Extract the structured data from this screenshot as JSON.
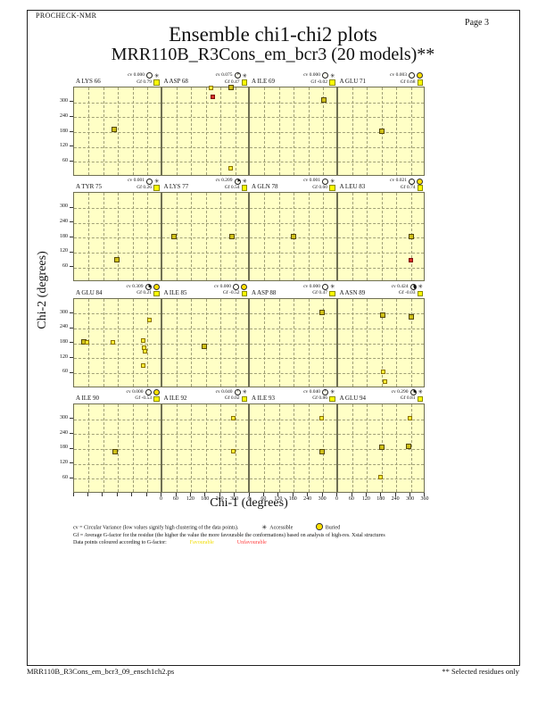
{
  "page": {
    "app": "PROCHECK-NMR",
    "page_label": "Page  3",
    "title": "Ensemble chi1-chi2 plots",
    "subtitle": "MRR110B_R3Cons_em_bcr3 (20 models)**",
    "footer_left": "MRR110B_R3Cons_em_bcr3_09_ensch1ch2.ps",
    "footer_right": "** Selected residues only"
  },
  "axes": {
    "xlabel": "Chi-1 (degrees)",
    "ylabel": "Chi-2 (degrees)",
    "x_tick_labels": [
      "0",
      "60",
      "120",
      "180",
      "240",
      "300"
    ],
    "x_final_label": "360",
    "y_tick_labels": [
      "300",
      "240",
      "180",
      "120",
      "60"
    ]
  },
  "legend": {
    "cv_line": "cv = Circular Variance (low values signify high clustering of the data points).",
    "accessible_label": "Accessible",
    "buried_label": "Buried",
    "gf_line": "Gf = Average G-factor for the residue (the higher the value the more favourable the conformations) based on analysis of high-res. Xstal structures",
    "colour_line": "Data points coloured according to G-factor:",
    "favourable_label": "Favourable",
    "unfavourable_label": "Unfavourable"
  },
  "colors": {
    "plot_bg": "#ffffc6",
    "plot_border": "#6f6f52",
    "gridline": "#a0a075",
    "favourable_point": "#ffee33",
    "overlap_point": "#cfc018",
    "unfavourable_point": "#d83028",
    "gf_swatch": "#ffff00",
    "buried_icon": "#ffe000",
    "favourable_text": "#f0dc00",
    "unfavourable_text": "#ff4040"
  },
  "chart_data": {
    "type": "scatter",
    "title": "Ensemble chi1-chi2 plots",
    "xlabel": "Chi-1 (degrees)",
    "ylabel": "Chi-2 (degrees)",
    "xlim": [
      0,
      360
    ],
    "ylim": [
      0,
      360
    ],
    "grid_step": 60,
    "stat_prefix_cv": "cv",
    "stat_prefix_gf": "Gf",
    "point_color_codes": {
      "f": "favourable",
      "o": "favourable-overlap",
      "u": "unfavourable"
    },
    "plots": [
      {
        "residue": "A LYS 66",
        "cv": "0.000",
        "gf": "0.79",
        "state": "accessible",
        "points": [
          [
            170,
            185,
            "o"
          ]
        ]
      },
      {
        "residue": "A ASP 68",
        "cv": "0.075",
        "gf": "0.47",
        "state": "accessible",
        "points": [
          [
            205,
            353,
            "f"
          ],
          [
            288,
            356,
            "o"
          ],
          [
            215,
            318,
            "u"
          ],
          [
            288,
            28,
            "f"
          ]
        ]
      },
      {
        "residue": "A ILE 69",
        "cv": "0.000",
        "gf": "-0.02",
        "state": "accessible",
        "points": [
          [
            307,
            305,
            "o"
          ]
        ]
      },
      {
        "residue": "A GLU 71",
        "cv": "0.003",
        "gf": "0.68",
        "state": "buried",
        "points": [
          [
            185,
            180,
            "o"
          ]
        ]
      },
      {
        "residue": "A TYR 75",
        "cv": "0.001",
        "gf": "0.26",
        "state": "accessible",
        "points": [
          [
            180,
            85,
            "o"
          ]
        ]
      },
      {
        "residue": "A LYS 77",
        "cv": "0.209",
        "gf": "0.54",
        "state": "accessible",
        "points": [
          [
            55,
            180,
            "o"
          ],
          [
            293,
            180,
            "o"
          ]
        ]
      },
      {
        "residue": "A GLN 78",
        "cv": "0.001",
        "gf": "0.60",
        "state": "accessible",
        "points": [
          [
            185,
            180,
            "o"
          ]
        ]
      },
      {
        "residue": "A LEU 83",
        "cv": "0.021",
        "gf": "0.74",
        "state": "buried",
        "points": [
          [
            305,
            178,
            "o"
          ],
          [
            305,
            85,
            "u"
          ]
        ]
      },
      {
        "residue": "A GLU 84",
        "cv": "0.309",
        "gf": "0.21",
        "state": "buried",
        "points": [
          [
            45,
            180,
            "o"
          ],
          [
            57,
            180,
            "f"
          ],
          [
            165,
            180,
            "f"
          ],
          [
            290,
            185,
            "f"
          ],
          [
            292,
            158,
            "f"
          ],
          [
            296,
            142,
            "f"
          ],
          [
            313,
            270,
            "f"
          ],
          [
            287,
            85,
            "f"
          ]
        ]
      },
      {
        "residue": "A ILE 85",
        "cv": "0.000",
        "gf": "-0.52",
        "state": "buried",
        "points": [
          [
            180,
            163,
            "o"
          ]
        ]
      },
      {
        "residue": "A ASP 88",
        "cv": "0.000",
        "gf": "0.47",
        "state": "accessible",
        "points": [
          [
            300,
            300,
            "o"
          ]
        ]
      },
      {
        "residue": "A ASN 89",
        "cv": "0.424",
        "gf": "-0.03",
        "state": "accessible",
        "points": [
          [
            190,
            287,
            "o"
          ],
          [
            305,
            280,
            "o"
          ],
          [
            192,
            60,
            "f"
          ],
          [
            200,
            20,
            "f"
          ]
        ]
      },
      {
        "residue": "A ILE 90",
        "cv": "0.000",
        "gf": "-0.53",
        "state": "buried",
        "points": [
          [
            175,
            163,
            "o"
          ]
        ]
      },
      {
        "residue": "A ILE 92",
        "cv": "0.040",
        "gf": "0.02",
        "state": "accessible",
        "points": [
          [
            299,
            300,
            "f"
          ],
          [
            296,
            165,
            "f"
          ]
        ]
      },
      {
        "residue": "A ILE 93",
        "cv": "0.040",
        "gf": "0.86",
        "state": "accessible",
        "points": [
          [
            300,
            300,
            "f"
          ],
          [
            300,
            165,
            "o"
          ]
        ]
      },
      {
        "residue": "A GLU 94",
        "cv": "0.290",
        "gf": "0.81",
        "state": "accessible",
        "points": [
          [
            185,
            180,
            "o"
          ],
          [
            296,
            185,
            "o"
          ],
          [
            300,
            300,
            "f"
          ],
          [
            180,
            60,
            "f"
          ]
        ]
      }
    ]
  }
}
